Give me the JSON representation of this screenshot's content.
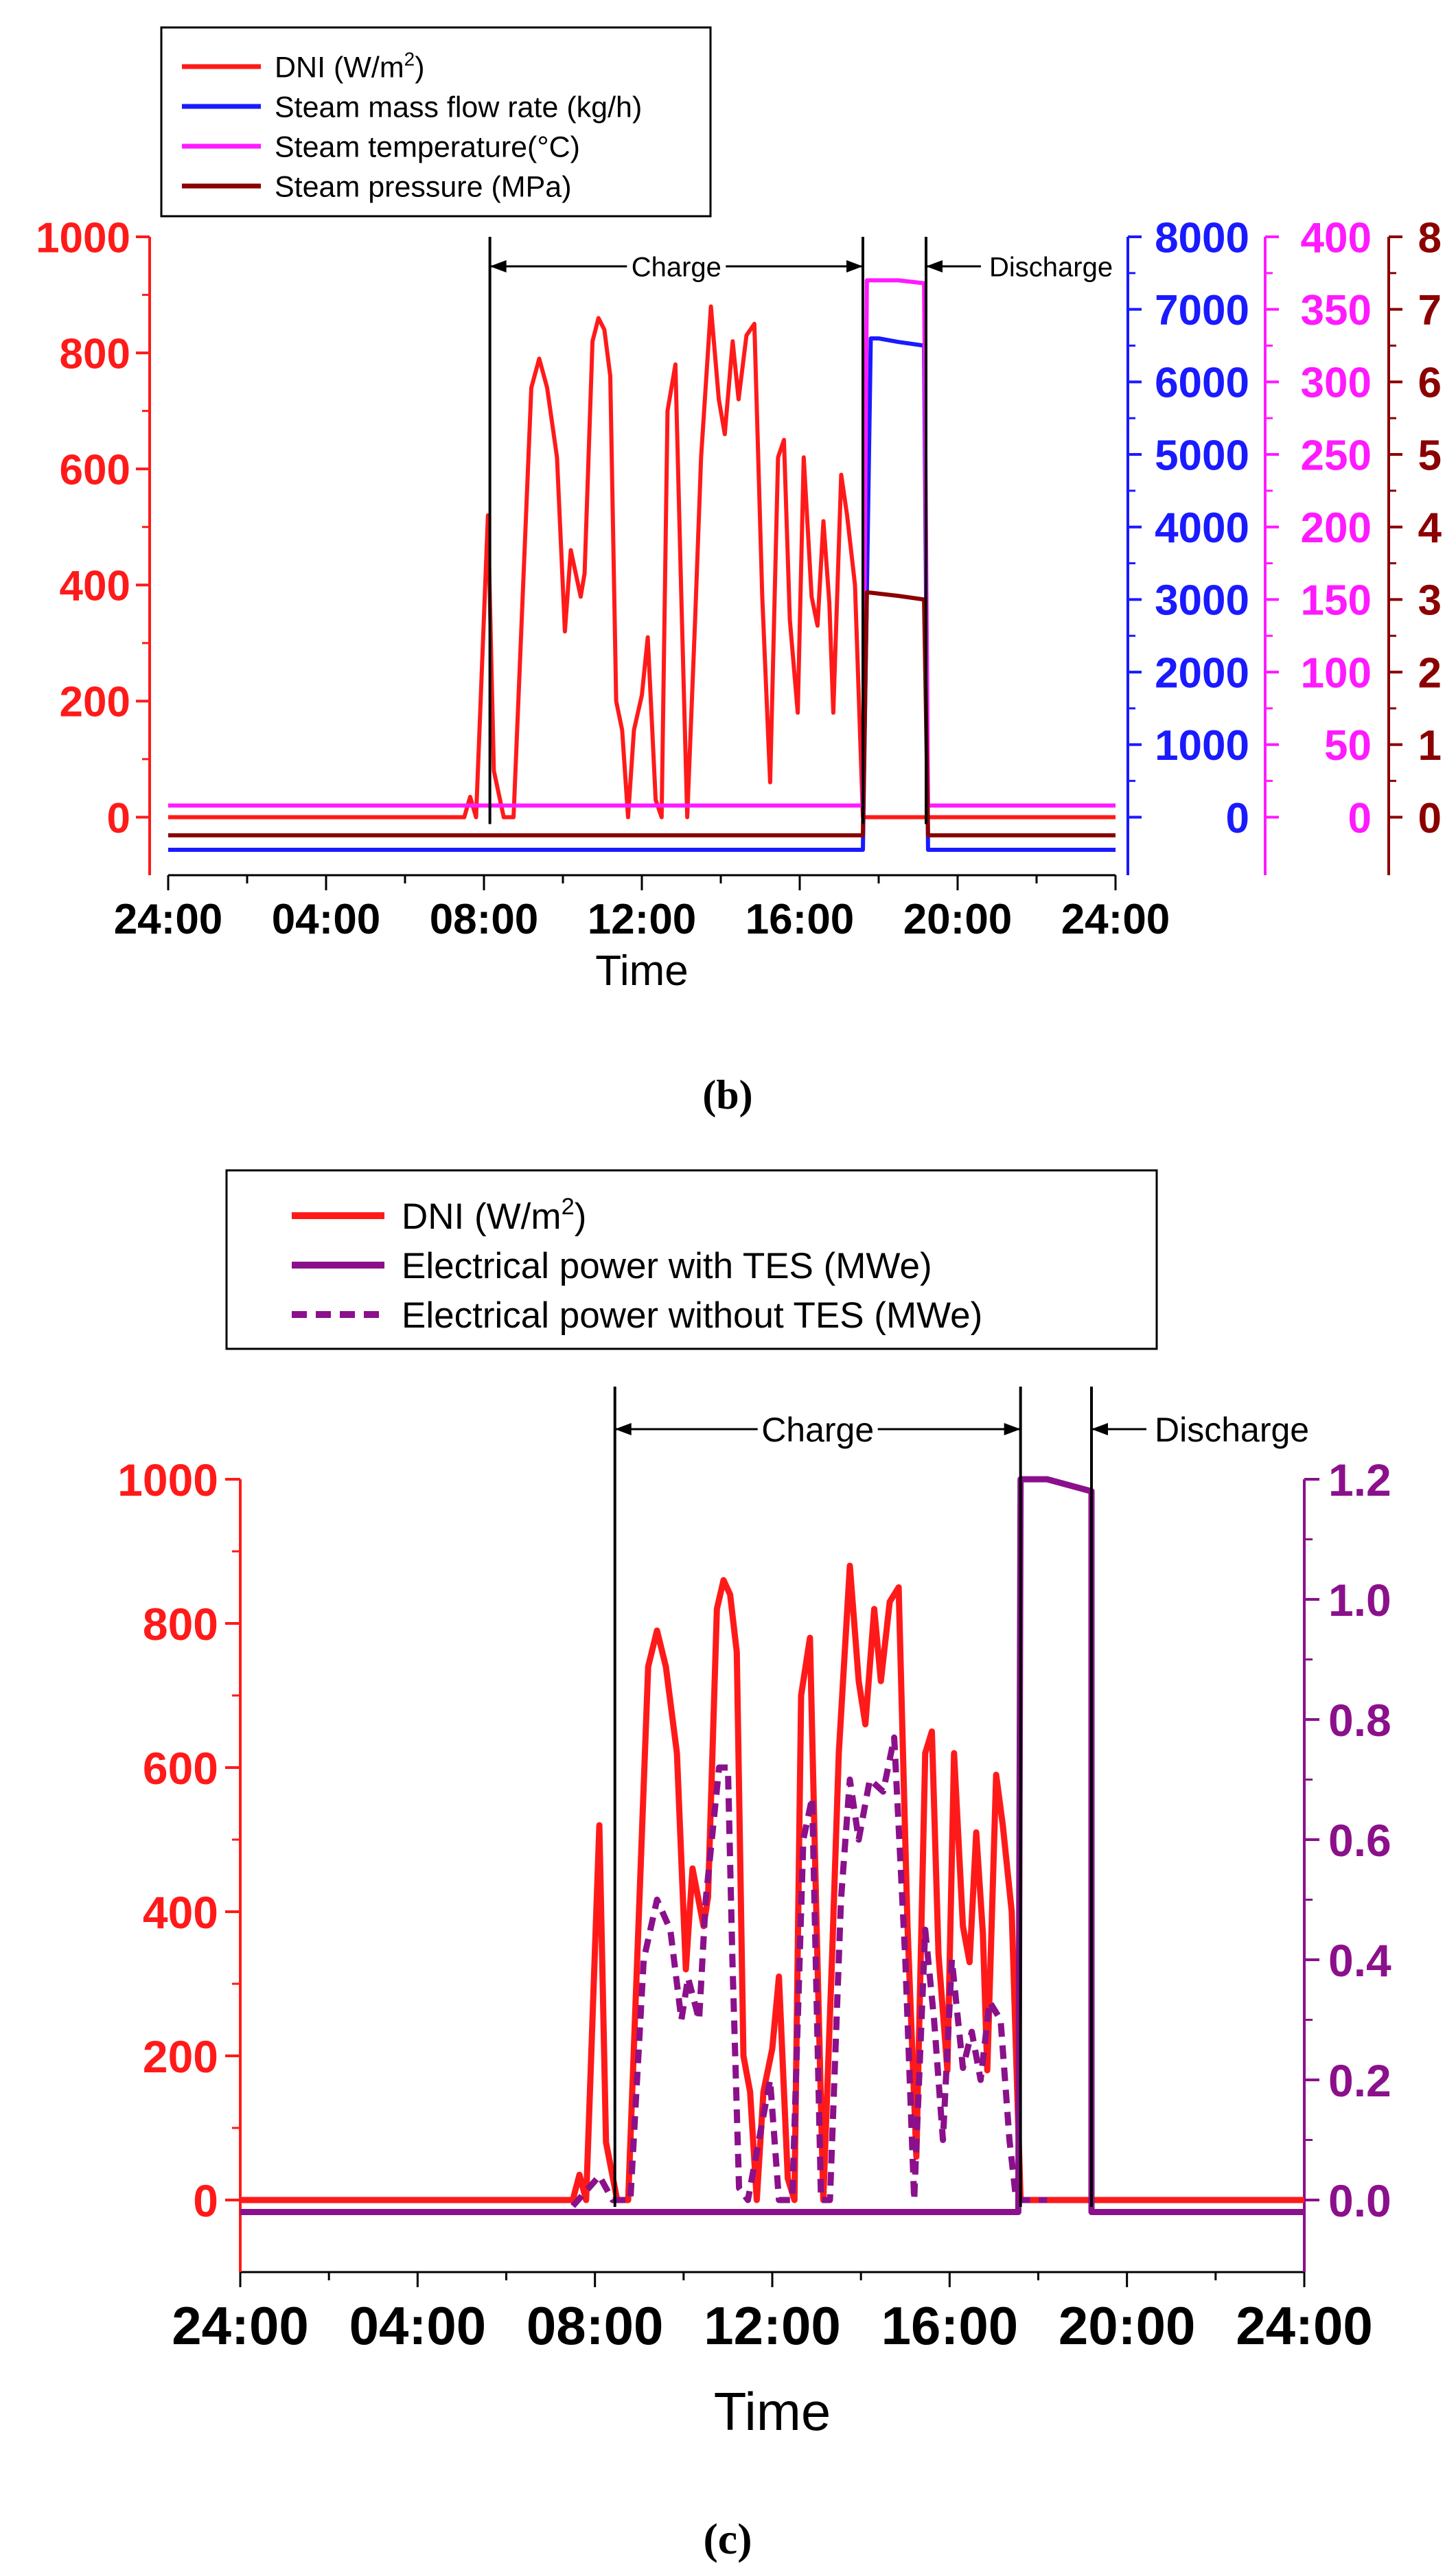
{
  "chart_data": [
    {
      "panel": "(b)",
      "type": "line",
      "xlabel": "Time",
      "x_ticks": [
        "24:00",
        "04:00",
        "08:00",
        "12:00",
        "16:00",
        "20:00",
        "24:00"
      ],
      "xlim_hours": [
        0,
        24
      ],
      "legend_position": "top-left",
      "annotations": {
        "charge": "Charge",
        "discharge": "Discharge"
      },
      "markers_hours": [
        8.15,
        17.6,
        19.2
      ],
      "axes": [
        {
          "id": "dni",
          "side": "left",
          "color": "#ff1a1a",
          "ylim": [
            -100,
            1000
          ],
          "ticks": [
            0,
            200,
            400,
            600,
            800,
            1000
          ]
        },
        {
          "id": "flow",
          "side": "right",
          "color": "#1a1aff",
          "ylim": [
            -800,
            8000
          ],
          "ticks": [
            0,
            1000,
            2000,
            3000,
            4000,
            5000,
            6000,
            7000,
            8000
          ]
        },
        {
          "id": "temp",
          "side": "right",
          "color": "#ff1aff",
          "ylim": [
            -40,
            400
          ],
          "ticks": [
            0,
            50,
            100,
            150,
            200,
            250,
            300,
            350,
            400
          ]
        },
        {
          "id": "press",
          "side": "right",
          "color": "#8b0000",
          "ylim": [
            -0.8,
            8
          ],
          "ticks": [
            0,
            1,
            2,
            3,
            4,
            5,
            6,
            7,
            8
          ]
        }
      ],
      "series": [
        {
          "name": "DNI",
          "unit": "W/m",
          "unit_sup": "2",
          "axis": "dni",
          "color": "#ff1a1a",
          "style": "solid",
          "points": [
            [
              0,
              0
            ],
            [
              7.5,
              0
            ],
            [
              7.65,
              35
            ],
            [
              7.8,
              0
            ],
            [
              8.1,
              520
            ],
            [
              8.25,
              80
            ],
            [
              8.5,
              0
            ],
            [
              8.75,
              0
            ],
            [
              9.2,
              740
            ],
            [
              9.4,
              790
            ],
            [
              9.6,
              740
            ],
            [
              9.85,
              620
            ],
            [
              10.05,
              320
            ],
            [
              10.2,
              460
            ],
            [
              10.45,
              380
            ],
            [
              10.55,
              420
            ],
            [
              10.75,
              820
            ],
            [
              10.9,
              860
            ],
            [
              11.05,
              840
            ],
            [
              11.2,
              760
            ],
            [
              11.35,
              200
            ],
            [
              11.5,
              150
            ],
            [
              11.65,
              0
            ],
            [
              11.8,
              150
            ],
            [
              12.0,
              210
            ],
            [
              12.15,
              310
            ],
            [
              12.35,
              30
            ],
            [
              12.5,
              0
            ],
            [
              12.65,
              700
            ],
            [
              12.85,
              780
            ],
            [
              13.0,
              380
            ],
            [
              13.15,
              0
            ],
            [
              13.35,
              340
            ],
            [
              13.5,
              620
            ],
            [
              13.75,
              880
            ],
            [
              13.95,
              720
            ],
            [
              14.1,
              660
            ],
            [
              14.3,
              820
            ],
            [
              14.45,
              720
            ],
            [
              14.65,
              830
            ],
            [
              14.85,
              850
            ],
            [
              15.05,
              380
            ],
            [
              15.25,
              60
            ],
            [
              15.45,
              620
            ],
            [
              15.6,
              650
            ],
            [
              15.75,
              340
            ],
            [
              15.95,
              180
            ],
            [
              16.1,
              620
            ],
            [
              16.3,
              380
            ],
            [
              16.45,
              330
            ],
            [
              16.6,
              510
            ],
            [
              16.75,
              370
            ],
            [
              16.85,
              180
            ],
            [
              17.05,
              590
            ],
            [
              17.2,
              520
            ],
            [
              17.4,
              400
            ],
            [
              17.6,
              0
            ],
            [
              24,
              0
            ]
          ]
        },
        {
          "name": "Steam mass flow rate",
          "unit": "kg/h",
          "axis": "flow",
          "color": "#1a1aff",
          "style": "solid",
          "points": [
            [
              0,
              -450
            ],
            [
              17.6,
              -450
            ],
            [
              17.8,
              6600
            ],
            [
              18.0,
              6600
            ],
            [
              18.5,
              6550
            ],
            [
              19.15,
              6500
            ],
            [
              19.25,
              -450
            ],
            [
              24,
              -450
            ]
          ]
        },
        {
          "name": "Steam temperature",
          "unit": "°C",
          "axis": "temp",
          "color": "#ff1aff",
          "style": "solid",
          "points": [
            [
              0,
              8
            ],
            [
              17.6,
              8
            ],
            [
              17.7,
              370
            ],
            [
              18.5,
              370
            ],
            [
              19.15,
              368
            ],
            [
              19.25,
              8
            ],
            [
              24,
              8
            ]
          ]
        },
        {
          "name": "Steam pressure",
          "unit": "MPa",
          "axis": "press",
          "color": "#8b0000",
          "style": "solid",
          "points": [
            [
              0,
              -0.25
            ],
            [
              17.6,
              -0.25
            ],
            [
              17.7,
              3.1
            ],
            [
              18.5,
              3.05
            ],
            [
              19.15,
              3.0
            ],
            [
              19.25,
              -0.25
            ],
            [
              24,
              -0.25
            ]
          ]
        }
      ]
    },
    {
      "panel": "(c)",
      "type": "line",
      "xlabel": "Time",
      "x_ticks": [
        "24:00",
        "04:00",
        "08:00",
        "12:00",
        "16:00",
        "20:00",
        "24:00"
      ],
      "xlim_hours": [
        0,
        24
      ],
      "legend_position": "top",
      "annotations": {
        "charge": "Charge",
        "discharge": "Discharge"
      },
      "markers_hours": [
        8.45,
        17.6,
        19.2
      ],
      "axes": [
        {
          "id": "dni",
          "side": "left",
          "color": "#ff1a1a",
          "ylim": [
            -100,
            1000
          ],
          "ticks": [
            0,
            200,
            400,
            600,
            800,
            1000
          ]
        },
        {
          "id": "power",
          "side": "right",
          "color": "#8b108b",
          "ylim": [
            -0.12,
            1.2
          ],
          "ticks": [
            "0.0",
            "0.2",
            "0.4",
            "0.6",
            "0.8",
            "1.0",
            "1.2"
          ]
        }
      ],
      "series": [
        {
          "name": "DNI",
          "unit": "W/m",
          "unit_sup": "2",
          "axis": "dni",
          "color": "#ff1a1a",
          "style": "solid",
          "points": [
            [
              0,
              0
            ],
            [
              7.5,
              0
            ],
            [
              7.65,
              35
            ],
            [
              7.8,
              0
            ],
            [
              8.1,
              520
            ],
            [
              8.25,
              80
            ],
            [
              8.5,
              0
            ],
            [
              8.75,
              0
            ],
            [
              9.2,
              740
            ],
            [
              9.4,
              790
            ],
            [
              9.6,
              740
            ],
            [
              9.85,
              620
            ],
            [
              10.05,
              320
            ],
            [
              10.2,
              460
            ],
            [
              10.45,
              380
            ],
            [
              10.55,
              420
            ],
            [
              10.75,
              820
            ],
            [
              10.9,
              860
            ],
            [
              11.05,
              840
            ],
            [
              11.2,
              760
            ],
            [
              11.35,
              200
            ],
            [
              11.5,
              150
            ],
            [
              11.65,
              0
            ],
            [
              11.8,
              150
            ],
            [
              12.0,
              210
            ],
            [
              12.15,
              310
            ],
            [
              12.35,
              30
            ],
            [
              12.5,
              0
            ],
            [
              12.65,
              700
            ],
            [
              12.85,
              780
            ],
            [
              13.0,
              380
            ],
            [
              13.15,
              0
            ],
            [
              13.35,
              340
            ],
            [
              13.5,
              620
            ],
            [
              13.75,
              880
            ],
            [
              13.95,
              720
            ],
            [
              14.1,
              660
            ],
            [
              14.3,
              820
            ],
            [
              14.45,
              720
            ],
            [
              14.65,
              830
            ],
            [
              14.85,
              850
            ],
            [
              15.05,
              380
            ],
            [
              15.25,
              60
            ],
            [
              15.45,
              620
            ],
            [
              15.6,
              650
            ],
            [
              15.75,
              340
            ],
            [
              15.95,
              180
            ],
            [
              16.1,
              620
            ],
            [
              16.3,
              380
            ],
            [
              16.45,
              330
            ],
            [
              16.6,
              510
            ],
            [
              16.75,
              370
            ],
            [
              16.85,
              180
            ],
            [
              17.05,
              590
            ],
            [
              17.2,
              520
            ],
            [
              17.4,
              400
            ],
            [
              17.6,
              0
            ],
            [
              24,
              0
            ]
          ]
        },
        {
          "name": "Electrical power with TES",
          "unit": "MWe",
          "axis": "power",
          "color": "#8b108b",
          "style": "solid",
          "points": [
            [
              0,
              -0.02
            ],
            [
              17.55,
              -0.02
            ],
            [
              17.6,
              1.2
            ],
            [
              18.2,
              1.2
            ],
            [
              19.2,
              1.18
            ],
            [
              19.2,
              -0.02
            ],
            [
              24,
              -0.02
            ]
          ]
        },
        {
          "name": "Electrical power without TES",
          "unit": "MWe",
          "axis": "power",
          "color": "#8b108b",
          "style": "dashed",
          "points": [
            [
              7.5,
              -0.01
            ],
            [
              8.1,
              0.04
            ],
            [
              8.4,
              0.0
            ],
            [
              8.8,
              0.0
            ],
            [
              9.1,
              0.4
            ],
            [
              9.4,
              0.5
            ],
            [
              9.7,
              0.45
            ],
            [
              9.95,
              0.3
            ],
            [
              10.1,
              0.37
            ],
            [
              10.35,
              0.3
            ],
            [
              10.5,
              0.5
            ],
            [
              10.8,
              0.72
            ],
            [
              11.0,
              0.72
            ],
            [
              11.1,
              0.4
            ],
            [
              11.25,
              0.02
            ],
            [
              11.45,
              0.0
            ],
            [
              11.7,
              0.1
            ],
            [
              11.95,
              0.2
            ],
            [
              12.15,
              0.0
            ],
            [
              12.45,
              0.0
            ],
            [
              12.7,
              0.6
            ],
            [
              12.9,
              0.67
            ],
            [
              13.1,
              0.0
            ],
            [
              13.3,
              0.0
            ],
            [
              13.55,
              0.5
            ],
            [
              13.75,
              0.7
            ],
            [
              13.95,
              0.6
            ],
            [
              14.2,
              0.7
            ],
            [
              14.5,
              0.68
            ],
            [
              14.75,
              0.77
            ],
            [
              15.0,
              0.4
            ],
            [
              15.2,
              0.0
            ],
            [
              15.45,
              0.45
            ],
            [
              15.65,
              0.3
            ],
            [
              15.85,
              0.1
            ],
            [
              16.05,
              0.4
            ],
            [
              16.3,
              0.22
            ],
            [
              16.5,
              0.28
            ],
            [
              16.7,
              0.2
            ],
            [
              16.9,
              0.33
            ],
            [
              17.15,
              0.3
            ],
            [
              17.35,
              0.1
            ],
            [
              17.5,
              0.0
            ],
            [
              18.2,
              0.0
            ]
          ]
        }
      ]
    }
  ],
  "captions": {
    "b": "(b)",
    "c": "(c)"
  }
}
